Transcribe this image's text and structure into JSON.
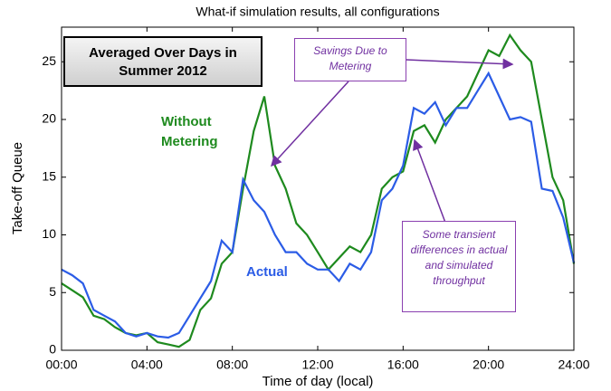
{
  "chart_data": {
    "type": "line",
    "title": "What-if simulation results, all configurations",
    "xlabel": "Time of day (local)",
    "ylabel": "Take-off Queue",
    "x": [
      0,
      0.5,
      1,
      1.5,
      2,
      2.5,
      3,
      3.5,
      4,
      4.5,
      5,
      5.5,
      6,
      6.5,
      7,
      7.5,
      8,
      8.5,
      9,
      9.5,
      10,
      10.5,
      11,
      11.5,
      12,
      12.5,
      13,
      13.5,
      14,
      14.5,
      15,
      15.5,
      16,
      16.5,
      17,
      17.5,
      18,
      18.5,
      19,
      19.5,
      20,
      20.5,
      21,
      21.5,
      22,
      22.5,
      23,
      23.5,
      24
    ],
    "series": [
      {
        "name": "Without Metering",
        "color": "#1e8a1e",
        "values": [
          5.8,
          5.2,
          4.6,
          3.0,
          2.7,
          2.0,
          1.5,
          1.3,
          1.5,
          0.7,
          0.5,
          0.3,
          0.9,
          3.5,
          4.5,
          7.5,
          8.5,
          14,
          19,
          22,
          16,
          14,
          11,
          10,
          8.5,
          7,
          8,
          9,
          8.5,
          10,
          14,
          15,
          15.5,
          19,
          19.5,
          18,
          20,
          21,
          22,
          24,
          26,
          25.5,
          27.3,
          26,
          25,
          20,
          15,
          13,
          7.5
        ]
      },
      {
        "name": "Actual",
        "color": "#2b5ce6",
        "values": [
          7,
          6.5,
          5.8,
          3.5,
          3,
          2.5,
          1.5,
          1.2,
          1.5,
          1.2,
          1.1,
          1.5,
          3,
          4.5,
          6,
          9.5,
          8.5,
          14.8,
          13,
          12,
          10,
          8.5,
          8.5,
          7.5,
          7,
          7,
          6,
          7.5,
          7,
          8.5,
          13,
          14,
          16,
          21,
          20.5,
          21.5,
          19.5,
          21,
          21,
          22.5,
          24,
          22,
          20,
          20.2,
          19.8,
          14,
          13.8,
          11.5,
          7.6
        ]
      }
    ],
    "xlim": [
      0,
      24
    ],
    "xticks": [
      {
        "value": 0,
        "label": "00:00"
      },
      {
        "value": 4,
        "label": "04:00"
      },
      {
        "value": 8,
        "label": "08:00"
      },
      {
        "value": 12,
        "label": "12:00"
      },
      {
        "value": 16,
        "label": "16:00"
      },
      {
        "value": 20,
        "label": "20:00"
      },
      {
        "value": 24,
        "label": "24:00"
      }
    ],
    "ylim": [
      0,
      28
    ],
    "yticks": [
      0,
      5,
      10,
      15,
      20,
      25
    ],
    "annotations": [
      "Averaged Over Days in Summer 2012",
      "Savings Due to Metering",
      "Some transient differences in actual and simulated throughput"
    ]
  }
}
